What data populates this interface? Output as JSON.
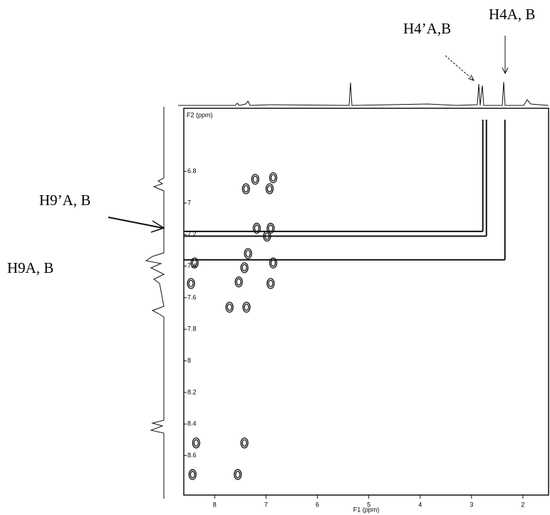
{
  "chart_data": {
    "type": "contour",
    "x_label": "F1 (ppm)",
    "y_label": "F2 (ppm)",
    "xlim": [
      8.6,
      1.5
    ],
    "ylim": [
      6.4,
      8.85
    ],
    "xticks": [
      8,
      7,
      6,
      5,
      4,
      3,
      2
    ],
    "yticks": [
      6.8,
      7.0,
      7.2,
      7.4,
      7.6,
      7.8,
      8.0,
      8.2,
      8.4,
      8.6
    ],
    "peaks": {
      "x": [
        7.39,
        7.21,
        6.86,
        6.93,
        7.18,
        6.91,
        6.98,
        7.35,
        7.42,
        7.53,
        6.86,
        6.91,
        8.39,
        8.46,
        7.71,
        7.38,
        8.36,
        8.43,
        7.42,
        7.55
      ],
      "y": [
        6.91,
        6.85,
        6.84,
        6.91,
        7.16,
        7.16,
        7.21,
        7.32,
        7.41,
        7.5,
        7.38,
        7.51,
        7.38,
        7.51,
        7.66,
        7.66,
        8.52,
        8.72,
        8.52,
        8.72
      ]
    },
    "guide_lines": {
      "x": [
        2.78,
        2.71,
        2.35
      ],
      "y": [
        7.18,
        7.21,
        7.36
      ]
    },
    "annotations": [
      "H4A, B",
      "H4’A,B",
      "H9’A, B",
      "H9A, B"
    ],
    "color": "#111111"
  }
}
